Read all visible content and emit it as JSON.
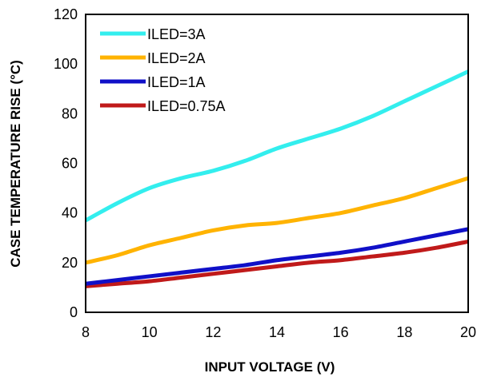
{
  "chart_data": {
    "type": "line",
    "title": "",
    "xlabel": "INPUT VOLTAGE (V)",
    "ylabel": "CASE TEMPERATURE RISE (°C)",
    "xlim": [
      8,
      20
    ],
    "ylim": [
      0,
      120
    ],
    "xticks": [
      8,
      10,
      12,
      14,
      16,
      18,
      20
    ],
    "yticks": [
      0,
      20,
      40,
      60,
      80,
      100,
      120
    ],
    "grid": false,
    "legend_position": "top-left",
    "series": [
      {
        "name": "ILED=3A",
        "color": "#33eeee",
        "x": [
          8,
          9,
          10,
          11,
          12,
          13,
          14,
          15,
          16,
          17,
          18,
          19,
          20
        ],
        "y": [
          37,
          44,
          50,
          54,
          57,
          61,
          66,
          70,
          74,
          79,
          85,
          91,
          97
        ]
      },
      {
        "name": "ILED=2A",
        "color": "#ffb300",
        "x": [
          8,
          9,
          10,
          11,
          12,
          13,
          14,
          15,
          16,
          17,
          18,
          19,
          20
        ],
        "y": [
          20,
          23,
          27,
          30,
          33,
          35,
          36,
          38,
          40,
          43,
          46,
          50,
          54
        ]
      },
      {
        "name": "ILED=1A",
        "color": "#1010c8",
        "x": [
          8,
          9,
          10,
          11,
          12,
          13,
          14,
          15,
          16,
          17,
          18,
          19,
          20
        ],
        "y": [
          11.5,
          13,
          14.5,
          16,
          17.5,
          19,
          21,
          22.5,
          24,
          26,
          28.5,
          31,
          33.5
        ]
      },
      {
        "name": "ILED=0.75A",
        "color": "#c01a1a",
        "x": [
          8,
          9,
          10,
          11,
          12,
          13,
          14,
          15,
          16,
          17,
          18,
          19,
          20
        ],
        "y": [
          10.5,
          11.5,
          12.5,
          14,
          15.5,
          17,
          18.5,
          20,
          21,
          22.5,
          24,
          26,
          28.5
        ]
      }
    ]
  }
}
